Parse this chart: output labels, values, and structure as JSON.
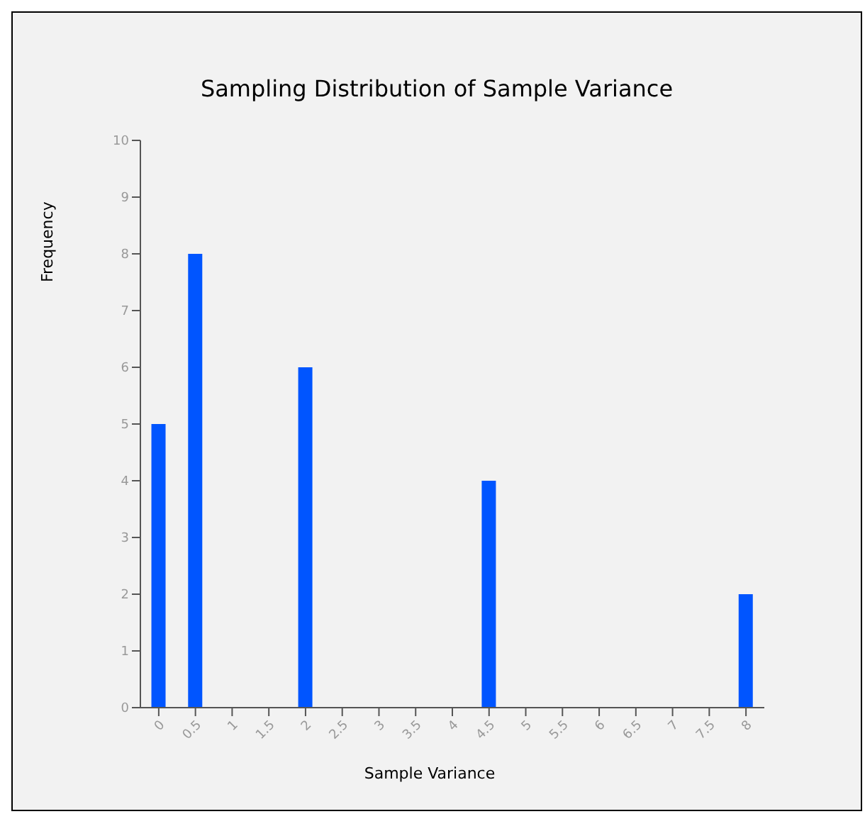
{
  "chart_data": {
    "type": "bar",
    "title": "Sampling Distribution of Sample Variance",
    "xlabel": "Sample Variance",
    "ylabel": "Frequency",
    "categories": [
      "0",
      "0.5",
      "1",
      "1.5",
      "2",
      "2.5",
      "3",
      "3.5",
      "4",
      "4.5",
      "5",
      "5.5",
      "6",
      "6.5",
      "7",
      "7.5",
      "8"
    ],
    "values": [
      5,
      8,
      0,
      0,
      6,
      0,
      0,
      0,
      0,
      4,
      0,
      0,
      0,
      0,
      0,
      0,
      2
    ],
    "color": "#0055ff",
    "ylim": [
      0,
      10
    ],
    "yticks": [
      0,
      1,
      2,
      3,
      4,
      5,
      6,
      7,
      8,
      9,
      10
    ],
    "grid": false
  }
}
